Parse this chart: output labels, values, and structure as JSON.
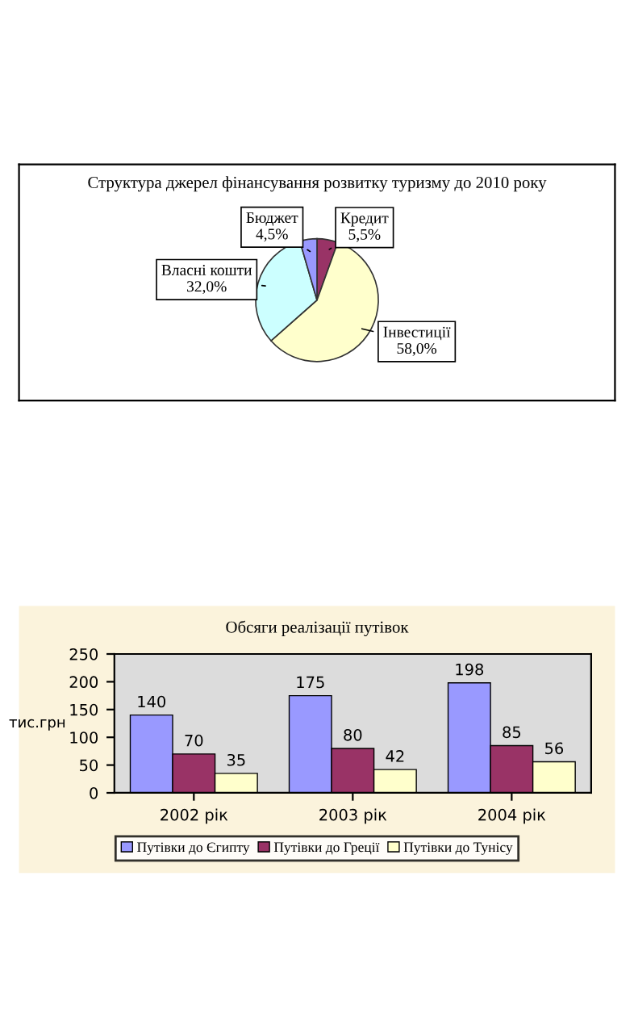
{
  "chart_data": [
    {
      "type": "pie",
      "title": "Структура джерел фінансування розвитку туризму до 2010 року",
      "categories": [
        "Кредит",
        "Інвестиції",
        "Власні кошти",
        "Бюджет"
      ],
      "values": [
        5.5,
        58.0,
        32.0,
        4.5
      ],
      "value_labels": [
        "5,5%",
        "58,0%",
        "32,0%",
        "4,5%"
      ],
      "colors": [
        "#993366",
        "#ffffcc",
        "#ccffff",
        "#9999ff"
      ]
    },
    {
      "type": "bar",
      "title": "Обсяги реалізації путівок",
      "ylabel": "тис.грн",
      "categories": [
        "2002 рік",
        "2003 рік",
        "2004 рік"
      ],
      "series": [
        {
          "name": "Путівки до Єгипту",
          "color": "#9999ff",
          "values": [
            140,
            175,
            198
          ]
        },
        {
          "name": "Путівки до Греції",
          "color": "#993366",
          "values": [
            70,
            80,
            85
          ]
        },
        {
          "name": "Путівки до Тунісу",
          "color": "#ffffcc",
          "values": [
            35,
            42,
            56
          ]
        }
      ],
      "ylim": [
        0,
        250
      ],
      "yticks": [
        0,
        50,
        100,
        150,
        200,
        250
      ],
      "data_labels": true,
      "legend": "bottom",
      "grid": false
    }
  ]
}
